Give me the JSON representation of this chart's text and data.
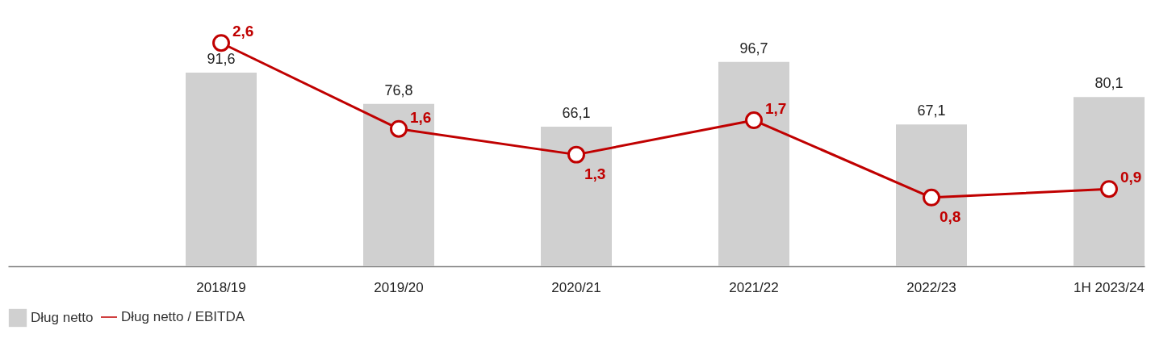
{
  "chart_data": {
    "type": "bar",
    "categories": [
      null,
      "2018/19",
      "2019/20",
      "2020/21",
      "2021/22",
      "2022/23",
      "1H 2023/24"
    ],
    "series": [
      {
        "name": "Dług netto",
        "color": "#d0d0d0",
        "values": [
          null,
          91.6,
          76.8,
          66.1,
          96.7,
          67.1,
          80.1
        ],
        "value_labels": [
          null,
          "91,6",
          "76,8",
          "66,1",
          "96,7",
          "67,1",
          "80,1"
        ]
      },
      {
        "name": "Dług netto / EBITDA",
        "type": "line",
        "axis": "y2",
        "color": "#c00000",
        "values": [
          null,
          2.6,
          1.6,
          1.3,
          1.7,
          0.8,
          0.9
        ],
        "value_labels": [
          null,
          "2,6",
          "1,6",
          "1,3",
          "1,7",
          "0,8",
          "0,9"
        ]
      }
    ],
    "ylim": [
      0,
      126
    ],
    "y2lim": [
      0,
      3.1
    ],
    "tick_labels": "x",
    "legend": "bottom",
    "grid": false,
    "marker": "circle"
  }
}
